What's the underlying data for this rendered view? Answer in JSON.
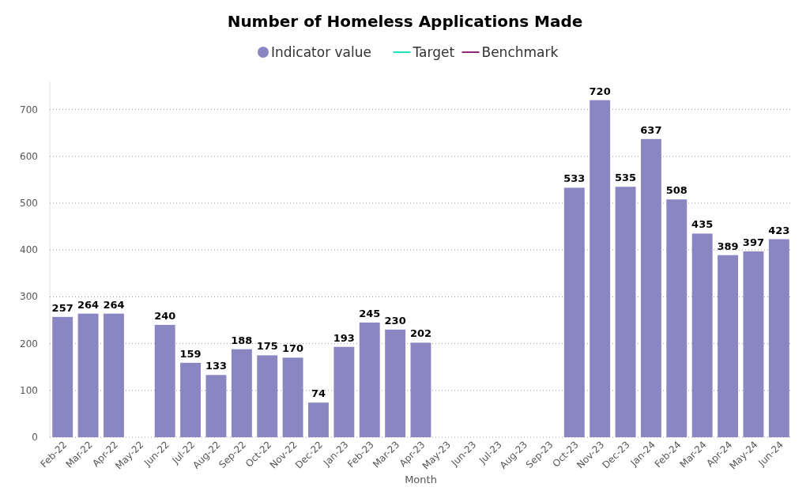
{
  "chart_data": {
    "type": "bar",
    "title": "Number of Homeless Applications Made",
    "xlabel": "Month",
    "categories": [
      "Feb-22",
      "Mar-22",
      "Apr-22",
      "May-22",
      "Jun-22",
      "Jul-22",
      "Aug-22",
      "Sep-22",
      "Oct-22",
      "Nov-22",
      "Dec-22",
      "Jan-23",
      "Feb-23",
      "Mar-23",
      "Apr-23",
      "May-23",
      "Jun-23",
      "Jul-23",
      "Aug-23",
      "Sep-23",
      "Oct-23",
      "Nov-23",
      "Dec-23",
      "Jan-24",
      "Feb-24",
      "Mar-24",
      "Apr-24",
      "May-24",
      "Jun-24"
    ],
    "series": [
      {
        "name": "Indicator value",
        "color": "#8a86c2",
        "values": [
          257,
          264,
          264,
          null,
          240,
          159,
          133,
          188,
          175,
          170,
          74,
          193,
          245,
          230,
          202,
          null,
          null,
          null,
          null,
          null,
          533,
          720,
          535,
          637,
          508,
          435,
          389,
          397,
          423
        ]
      },
      {
        "name": "Target",
        "type": "line",
        "color": "#19e6c0",
        "values": [
          null,
          null,
          null,
          null,
          null,
          null,
          null,
          null,
          null,
          null,
          null,
          null,
          null,
          null,
          null,
          null,
          null,
          null,
          null,
          null,
          null,
          null,
          null,
          null,
          null,
          null,
          null,
          null,
          null
        ]
      },
      {
        "name": "Benchmark",
        "type": "line",
        "color": "#8c2a78",
        "values": [
          null,
          null,
          null,
          null,
          null,
          null,
          null,
          null,
          null,
          null,
          null,
          null,
          null,
          null,
          null,
          null,
          null,
          null,
          null,
          null,
          null,
          null,
          null,
          null,
          null,
          null,
          null,
          null,
          null
        ]
      }
    ],
    "ylim": [
      0,
      760
    ],
    "yticks": [
      0,
      100,
      200,
      300,
      400,
      500,
      600,
      700
    ],
    "grid": "y",
    "legend": "top",
    "data_labels": true
  }
}
